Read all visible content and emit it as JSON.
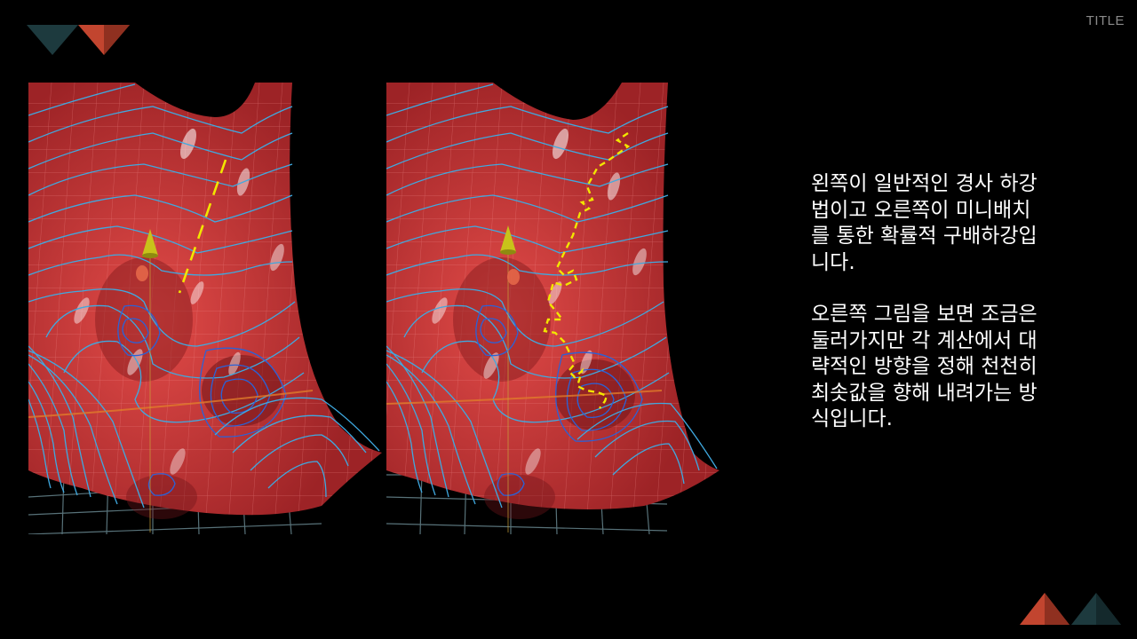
{
  "slide": {
    "corner_title": "TITLE",
    "paragraphs": [
      "왼쪽이 일반적인 경사 하강\n법이고 오른쪽이 미니배치\n를 통한 확률적 구배하강입\n니다.",
      "오른쪽 그림을 보면 조금은\n둘러가지만 각 계산에서 대\n략적인 방향을 정해 천천히\n최솟값을 향해 내려가는 방\n식입니다."
    ]
  },
  "figures": [
    {
      "name": "gradient-descent-surface",
      "path_style": "smooth"
    },
    {
      "name": "minibatch-sgd-surface",
      "path_style": "noisy"
    }
  ],
  "colors": {
    "background": "#000000",
    "surface": "#c8393a",
    "contour": "#3fa9e0",
    "path": "#f2e600",
    "deco_dark": "#1d3a3e",
    "deco_red": "#c2452f"
  }
}
